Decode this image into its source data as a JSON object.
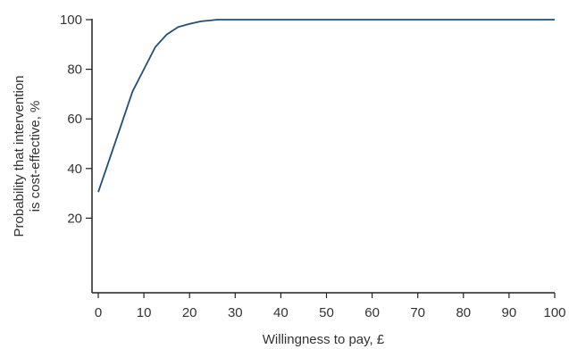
{
  "chart_data": {
    "type": "line",
    "title": "",
    "xlabel": "Willingness to pay, £",
    "ylabel_lines": [
      "Probability that intervention",
      "is cost-effective, %"
    ],
    "xlim": [
      0,
      100
    ],
    "ylim": [
      0,
      100
    ],
    "xticks": [
      0,
      10,
      20,
      30,
      40,
      50,
      60,
      70,
      80,
      90,
      100
    ],
    "yticks": [
      20,
      40,
      60,
      80,
      100
    ],
    "grid": false,
    "line_color": "#1f4e79",
    "series": [
      {
        "x": [
          0,
          2.5,
          5,
          7.5,
          10,
          12.5,
          15,
          17.5,
          20,
          22.5,
          25,
          26,
          30,
          40,
          50,
          60,
          70,
          80,
          90,
          100
        ],
        "y": [
          30.5,
          44,
          57.5,
          71,
          80,
          89,
          94,
          97,
          98.3,
          99.3,
          99.8,
          100,
          100,
          100,
          100,
          100,
          100,
          100,
          100,
          100
        ]
      }
    ]
  }
}
